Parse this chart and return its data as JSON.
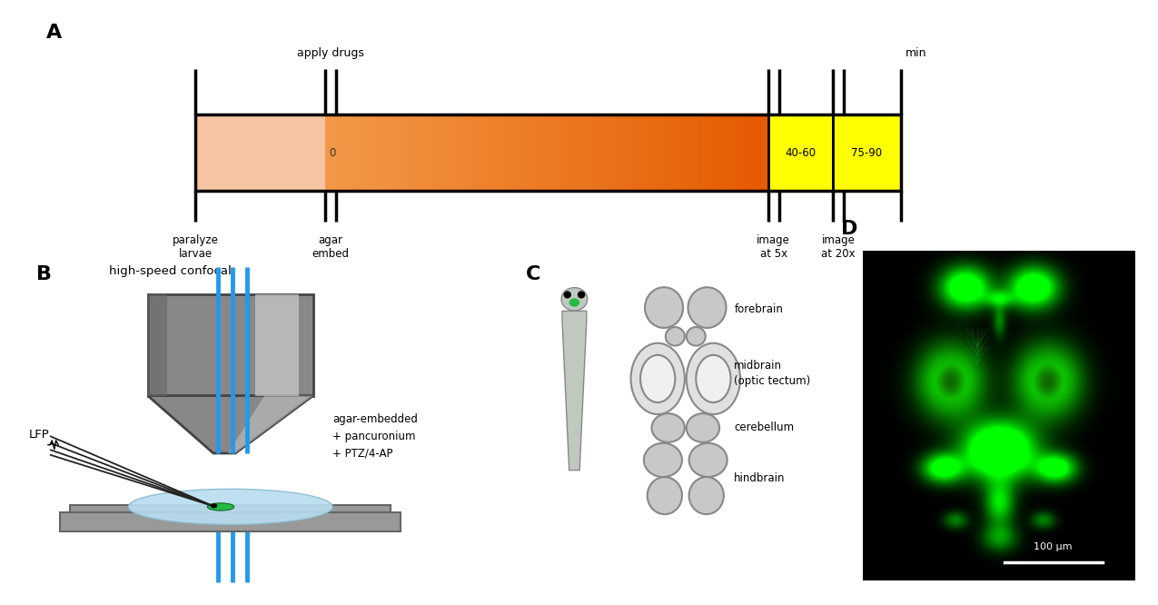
{
  "panel_A": {
    "label": "A",
    "timeline_label_above": "apply drugs",
    "timeline_label_right": "min",
    "bar_light_color": "#f5c4a0",
    "yellow_color": "#ffff00",
    "bar_border_color": "#1a1a1a",
    "tick_labels_below": [
      "paralyze\nlarvae",
      "agar\nembed",
      "image\nat 5x",
      "image\nat 20x"
    ],
    "yellow_box1_text": "40-60",
    "yellow_box2_text": "75-90",
    "zero_text": "0"
  },
  "panel_B": {
    "label": "B",
    "title": "high-speed confocal",
    "lfp_label": "LFP",
    "embed_text": "agar-embedded\n+ pancuronium\n+ PTZ/4-AP"
  },
  "panel_C": {
    "label": "C",
    "region_labels": [
      "forebrain",
      "midbrain\n(optic tectum)",
      "cerebellum",
      "hindbrain"
    ]
  },
  "panel_D": {
    "label": "D",
    "scalebar_text": "100 μm"
  },
  "colors": {
    "background": "#ffffff",
    "gray_brain": "#c8c8c8",
    "gray_brain_outline": "#888888",
    "gray_brain_light": "#e0e0e0",
    "gray_brain_white": "#f0f0f0",
    "blue_laser": "#2299ee",
    "green_fish": "#22bb44",
    "dark_green": "#116622",
    "black": "#000000",
    "dark_gray": "#333333",
    "light_blue_agar": "#b8ddf0",
    "microscope_body": "#888888",
    "microscope_light": "#cccccc",
    "microscope_dark": "#444444",
    "stage_gray": "#999999",
    "stage_dark": "#666666"
  }
}
